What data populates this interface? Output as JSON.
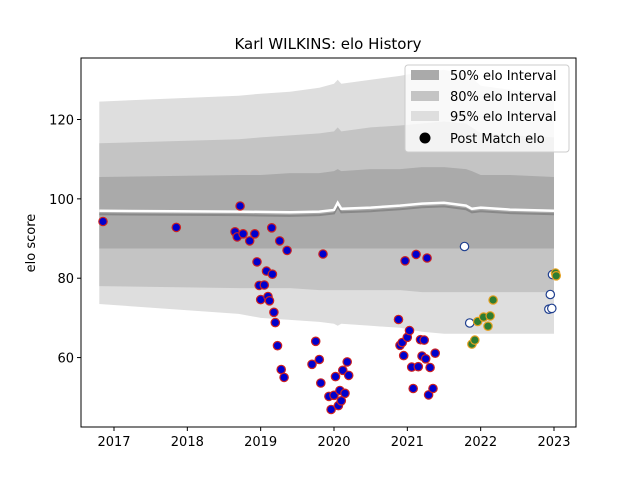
{
  "chart_data": {
    "type": "scatter",
    "title": "Karl WILKINS: elo History",
    "xlabel": "",
    "ylabel": "elo score",
    "xlim": [
      2016.55,
      2023.3
    ],
    "ylim": [
      42.5,
      135.5
    ],
    "x_ticks": [
      2017,
      2018,
      2019,
      2020,
      2021,
      2022,
      2023
    ],
    "x_tick_labels": [
      "2017",
      "2018",
      "2019",
      "2020",
      "2021",
      "2022",
      "2023"
    ],
    "y_ticks": [
      60,
      80,
      100,
      120
    ],
    "y_tick_labels": [
      "60",
      "80",
      "100",
      "120"
    ],
    "grid": false,
    "legend": {
      "position": "top-right",
      "entries": [
        {
          "label": "50% elo Interval",
          "kind": "band",
          "color": "#aaaaaa"
        },
        {
          "label": "80% elo Interval",
          "kind": "band",
          "color": "#c4c4c4"
        },
        {
          "label": "95% elo Interval",
          "kind": "band",
          "color": "#dedede"
        },
        {
          "label": "Post Match elo",
          "kind": "marker",
          "color": "#000000"
        }
      ]
    },
    "bands": {
      "x": [
        2016.8,
        2018.7,
        2019.0,
        2019.4,
        2019.8,
        2020.0,
        2020.05,
        2020.1,
        2020.5,
        2020.9,
        2021.2,
        2021.5,
        2021.8,
        2021.88,
        2022.0,
        2022.4,
        2023.0
      ],
      "p95_upper": [
        124.5,
        126.0,
        126.5,
        127.0,
        128.0,
        129.0,
        130.0,
        129.0,
        130.0,
        131.0,
        132.0,
        132.5,
        131.5,
        130.5,
        128.5,
        127.5,
        126.5
      ],
      "p80_upper": [
        114.0,
        115.0,
        115.5,
        116.0,
        116.5,
        117.0,
        118.0,
        117.0,
        118.0,
        118.5,
        119.0,
        119.5,
        119.0,
        118.0,
        116.5,
        116.0,
        115.5
      ],
      "p50_upper": [
        105.5,
        106.0,
        106.0,
        106.5,
        106.5,
        107.0,
        107.5,
        107.0,
        107.5,
        107.5,
        108.0,
        108.0,
        107.5,
        107.0,
        106.0,
        106.0,
        105.5
      ],
      "p50_lower": [
        87.5,
        87.5,
        87.5,
        87.5,
        87.5,
        87.5,
        87.5,
        87.5,
        87.5,
        87.5,
        87.5,
        87.5,
        87.5,
        87.5,
        87.5,
        87.5,
        87.5
      ],
      "p80_lower": [
        78.0,
        77.5,
        77.5,
        77.5,
        77.0,
        77.0,
        77.0,
        77.0,
        77.0,
        77.0,
        76.5,
        76.5,
        76.5,
        76.5,
        76.5,
        76.5,
        76.5
      ],
      "p95_lower": [
        73.5,
        71.0,
        70.0,
        69.5,
        69.0,
        68.5,
        68.0,
        68.5,
        68.0,
        67.5,
        66.5,
        66.0,
        66.0,
        66.0,
        66.0,
        66.0,
        66.0
      ],
      "mean": [
        97.0,
        96.8,
        96.7,
        96.6,
        96.8,
        97.2,
        99.0,
        97.5,
        97.8,
        98.3,
        98.8,
        99.0,
        98.3,
        97.5,
        97.8,
        97.3,
        97.0
      ]
    },
    "series": [
      {
        "marker_face": "#0000cd",
        "marker_edge": "#cc2222",
        "points": [
          [
            2016.85,
            94.3
          ],
          [
            2017.85,
            92.8
          ],
          [
            2018.65,
            91.7
          ],
          [
            2018.68,
            90.4
          ],
          [
            2018.72,
            98.2
          ],
          [
            2018.76,
            91.2
          ],
          [
            2018.85,
            89.4
          ],
          [
            2018.92,
            91.2
          ],
          [
            2018.95,
            84.1
          ],
          [
            2018.98,
            78.2
          ],
          [
            2019.0,
            74.6
          ],
          [
            2019.05,
            78.3
          ],
          [
            2019.08,
            81.8
          ],
          [
            2019.1,
            75.4
          ],
          [
            2019.12,
            74.3
          ],
          [
            2019.15,
            92.7
          ],
          [
            2019.16,
            81.0
          ],
          [
            2019.18,
            71.4
          ],
          [
            2019.2,
            68.8
          ],
          [
            2019.23,
            63.0
          ],
          [
            2019.26,
            89.4
          ],
          [
            2019.28,
            57.0
          ],
          [
            2019.32,
            55.0
          ],
          [
            2019.36,
            87.0
          ],
          [
            2019.7,
            58.3
          ],
          [
            2019.75,
            64.1
          ],
          [
            2019.8,
            59.5
          ],
          [
            2019.82,
            53.6
          ],
          [
            2019.85,
            86.1
          ],
          [
            2019.93,
            50.2
          ],
          [
            2019.96,
            46.9
          ],
          [
            2020.0,
            50.5
          ],
          [
            2020.02,
            55.2
          ],
          [
            2020.06,
            47.9
          ],
          [
            2020.08,
            51.7
          ],
          [
            2020.1,
            49.1
          ],
          [
            2020.12,
            56.8
          ],
          [
            2020.15,
            51.0
          ],
          [
            2020.18,
            58.9
          ],
          [
            2020.2,
            55.5
          ],
          [
            2020.88,
            69.6
          ],
          [
            2020.9,
            63.1
          ],
          [
            2020.93,
            63.8
          ],
          [
            2020.95,
            60.5
          ],
          [
            2020.97,
            84.4
          ],
          [
            2021.0,
            65.1
          ],
          [
            2021.03,
            66.8
          ],
          [
            2021.06,
            57.6
          ],
          [
            2021.08,
            52.2
          ],
          [
            2021.12,
            86.0
          ],
          [
            2021.15,
            57.7
          ],
          [
            2021.18,
            64.5
          ],
          [
            2021.2,
            60.4
          ],
          [
            2021.23,
            64.4
          ],
          [
            2021.25,
            59.7
          ],
          [
            2021.27,
            85.1
          ],
          [
            2021.29,
            50.6
          ],
          [
            2021.31,
            57.5
          ],
          [
            2021.35,
            52.2
          ],
          [
            2021.38,
            61.1
          ]
        ]
      },
      {
        "marker_face": "#ffffff",
        "marker_edge": "#1f3f8f",
        "points": [
          [
            2021.78,
            88.0
          ],
          [
            2021.85,
            68.7
          ],
          [
            2022.93,
            72.2
          ],
          [
            2022.95,
            75.9
          ],
          [
            2022.97,
            72.4
          ],
          [
            2022.98,
            80.9
          ]
        ]
      },
      {
        "marker_face": "#2e7d32",
        "marker_edge": "#e5a020",
        "points": [
          [
            2021.88,
            63.4
          ],
          [
            2021.92,
            64.4
          ],
          [
            2021.96,
            69.1
          ],
          [
            2022.04,
            70.2
          ],
          [
            2022.1,
            67.9
          ],
          [
            2022.13,
            70.5
          ],
          [
            2022.17,
            74.5
          ],
          [
            2023.02,
            81.3
          ],
          [
            2023.03,
            80.6
          ]
        ]
      }
    ]
  }
}
